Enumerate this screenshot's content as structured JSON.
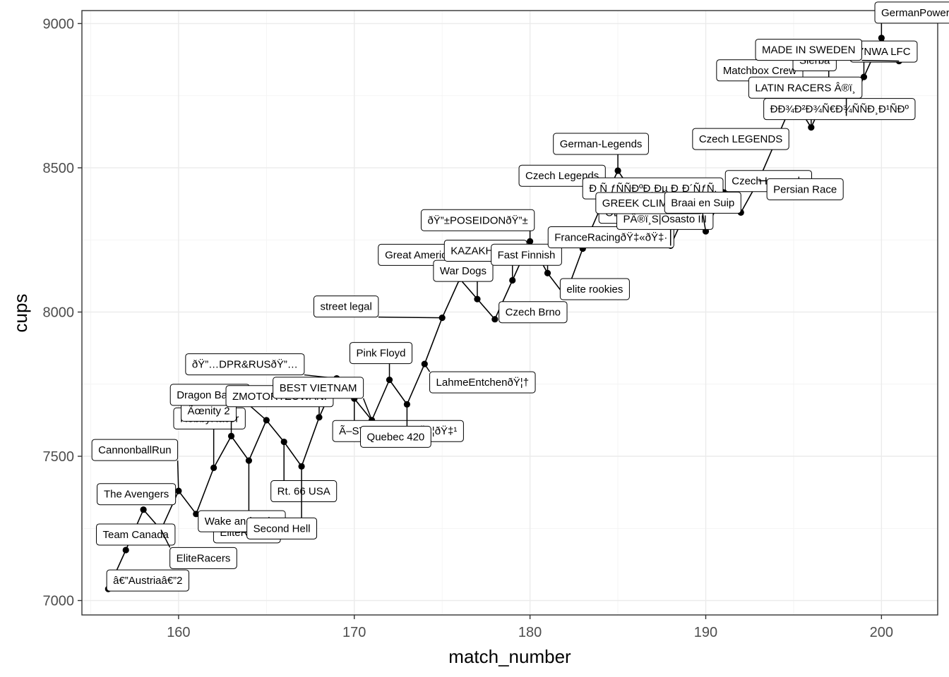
{
  "chart_data": {
    "type": "line",
    "xlabel": "match_number",
    "ylabel": "cups",
    "xlim": [
      154.5,
      203.2
    ],
    "ylim": [
      6950,
      9045
    ],
    "xticks": [
      160,
      170,
      180,
      190,
      200
    ],
    "yticks": [
      7000,
      7500,
      8000,
      8500,
      9000
    ],
    "grid": true,
    "points": [
      {
        "x": 156,
        "y": 7040,
        "label": "â€”Austriaâ€”2"
      },
      {
        "x": 157,
        "y": 7175,
        "label": "Team Canada"
      },
      {
        "x": 158,
        "y": 7315,
        "label": "The Avengers"
      },
      {
        "x": 159,
        "y": 7245,
        "label": "EliteRacers"
      },
      {
        "x": 160,
        "y": 7380,
        "label": "CannonballRun"
      },
      {
        "x": 161,
        "y": 7300,
        "label": "EliteRacers"
      },
      {
        "x": 162,
        "y": 7460,
        "label": "HobbyRacer"
      },
      {
        "x": 163,
        "y": 7570,
        "label": "Ãœnity 2"
      },
      {
        "x": 164,
        "y": 7485,
        "label": "Wake and Bake"
      },
      {
        "x": 165,
        "y": 7625,
        "label": "Dragon Ball-ix"
      },
      {
        "x": 166,
        "y": 7550,
        "label": "Rt. 66 USA"
      },
      {
        "x": 167,
        "y": 7465,
        "label": "Second Hell"
      },
      {
        "x": 168,
        "y": 7635,
        "label": "ZMOTORYZOWANI"
      },
      {
        "x": 169,
        "y": 7770,
        "label": "ðŸ”…DPR&RUSðŸ”…"
      },
      {
        "x": 170,
        "y": 7700,
        "label": "Ã–STERREICHðŸ‡¦ðŸ‡¹"
      },
      {
        "x": 171,
        "y": 7625,
        "label": "BEST VIETNAM"
      },
      {
        "x": 172,
        "y": 7765,
        "label": "Pink Floyd"
      },
      {
        "x": 173,
        "y": 7680,
        "label": "Quebec 420"
      },
      {
        "x": 174,
        "y": 7820,
        "label": "LahmeEntchenðŸ¦†"
      },
      {
        "x": 175,
        "y": 7980,
        "label": "street legal"
      },
      {
        "x": 176,
        "y": 8115,
        "label": "Great America"
      },
      {
        "x": 177,
        "y": 8045,
        "label": "War Dogs"
      },
      {
        "x": 178,
        "y": 7975,
        "label": "Czech Brno"
      },
      {
        "x": 179,
        "y": 8110,
        "label": "KAZAKHSTAN"
      },
      {
        "x": 180,
        "y": 8245,
        "label": "ðŸ”±POSEIDONðŸ”±"
      },
      {
        "x": 181,
        "y": 8135,
        "label": "Fast Finnish"
      },
      {
        "x": 182,
        "y": 8055,
        "label": "elite rookies"
      },
      {
        "x": 183,
        "y": 8220,
        "label": "FranceRacingðŸ‡«ðŸ‡·"
      },
      {
        "x": 184,
        "y": 8360,
        "label": "Czech Legends"
      },
      {
        "x": 185,
        "y": 8490,
        "label": "German-Legends"
      },
      {
        "x": 186,
        "y": 8400,
        "label": "Husaria POL"
      },
      {
        "x": 187,
        "y": 8310,
        "label": "ODEC"
      },
      {
        "x": 188,
        "y": 8230,
        "label": "PÂ®ï¸S|Osasto III"
      },
      {
        "x": 189,
        "y": 8365,
        "label": "Ð Ñ ƒÑÑÐºÐ¸Ðµ Ð¸Ð´ÑƒÑ‚"
      },
      {
        "x": 190,
        "y": 8280,
        "label": "GREEK CLIMBERS"
      },
      {
        "x": 191,
        "y": 8415,
        "label": "Czech Legends"
      },
      {
        "x": 192,
        "y": 8345,
        "label": "Braai en Suip"
      },
      {
        "x": 193,
        "y": 8455,
        "label": "Persian Race"
      },
      {
        "x": 194,
        "y": 8595,
        "label": "Czech LEGENDS"
      },
      {
        "x": 195,
        "y": 8735,
        "label": "Matchbox Crew"
      },
      {
        "x": 196,
        "y": 8640,
        "label": "ÐÐ¾Ð²Ð¾Ñ€Ð¾ÑÑÐ¸Ð¹ÑÐº"
      },
      {
        "x": 197,
        "y": 8775,
        "label": "Slerba"
      },
      {
        "x": 198,
        "y": 8680,
        "label": "LATIN RACERS Â®ï¸"
      },
      {
        "x": 199,
        "y": 8815,
        "label": "YNWA LFC"
      },
      {
        "x": 200,
        "y": 8950,
        "label": "GermanPower"
      },
      {
        "x": 201,
        "y": 8870,
        "label": "MADE IN SWEDEN"
      }
    ]
  }
}
